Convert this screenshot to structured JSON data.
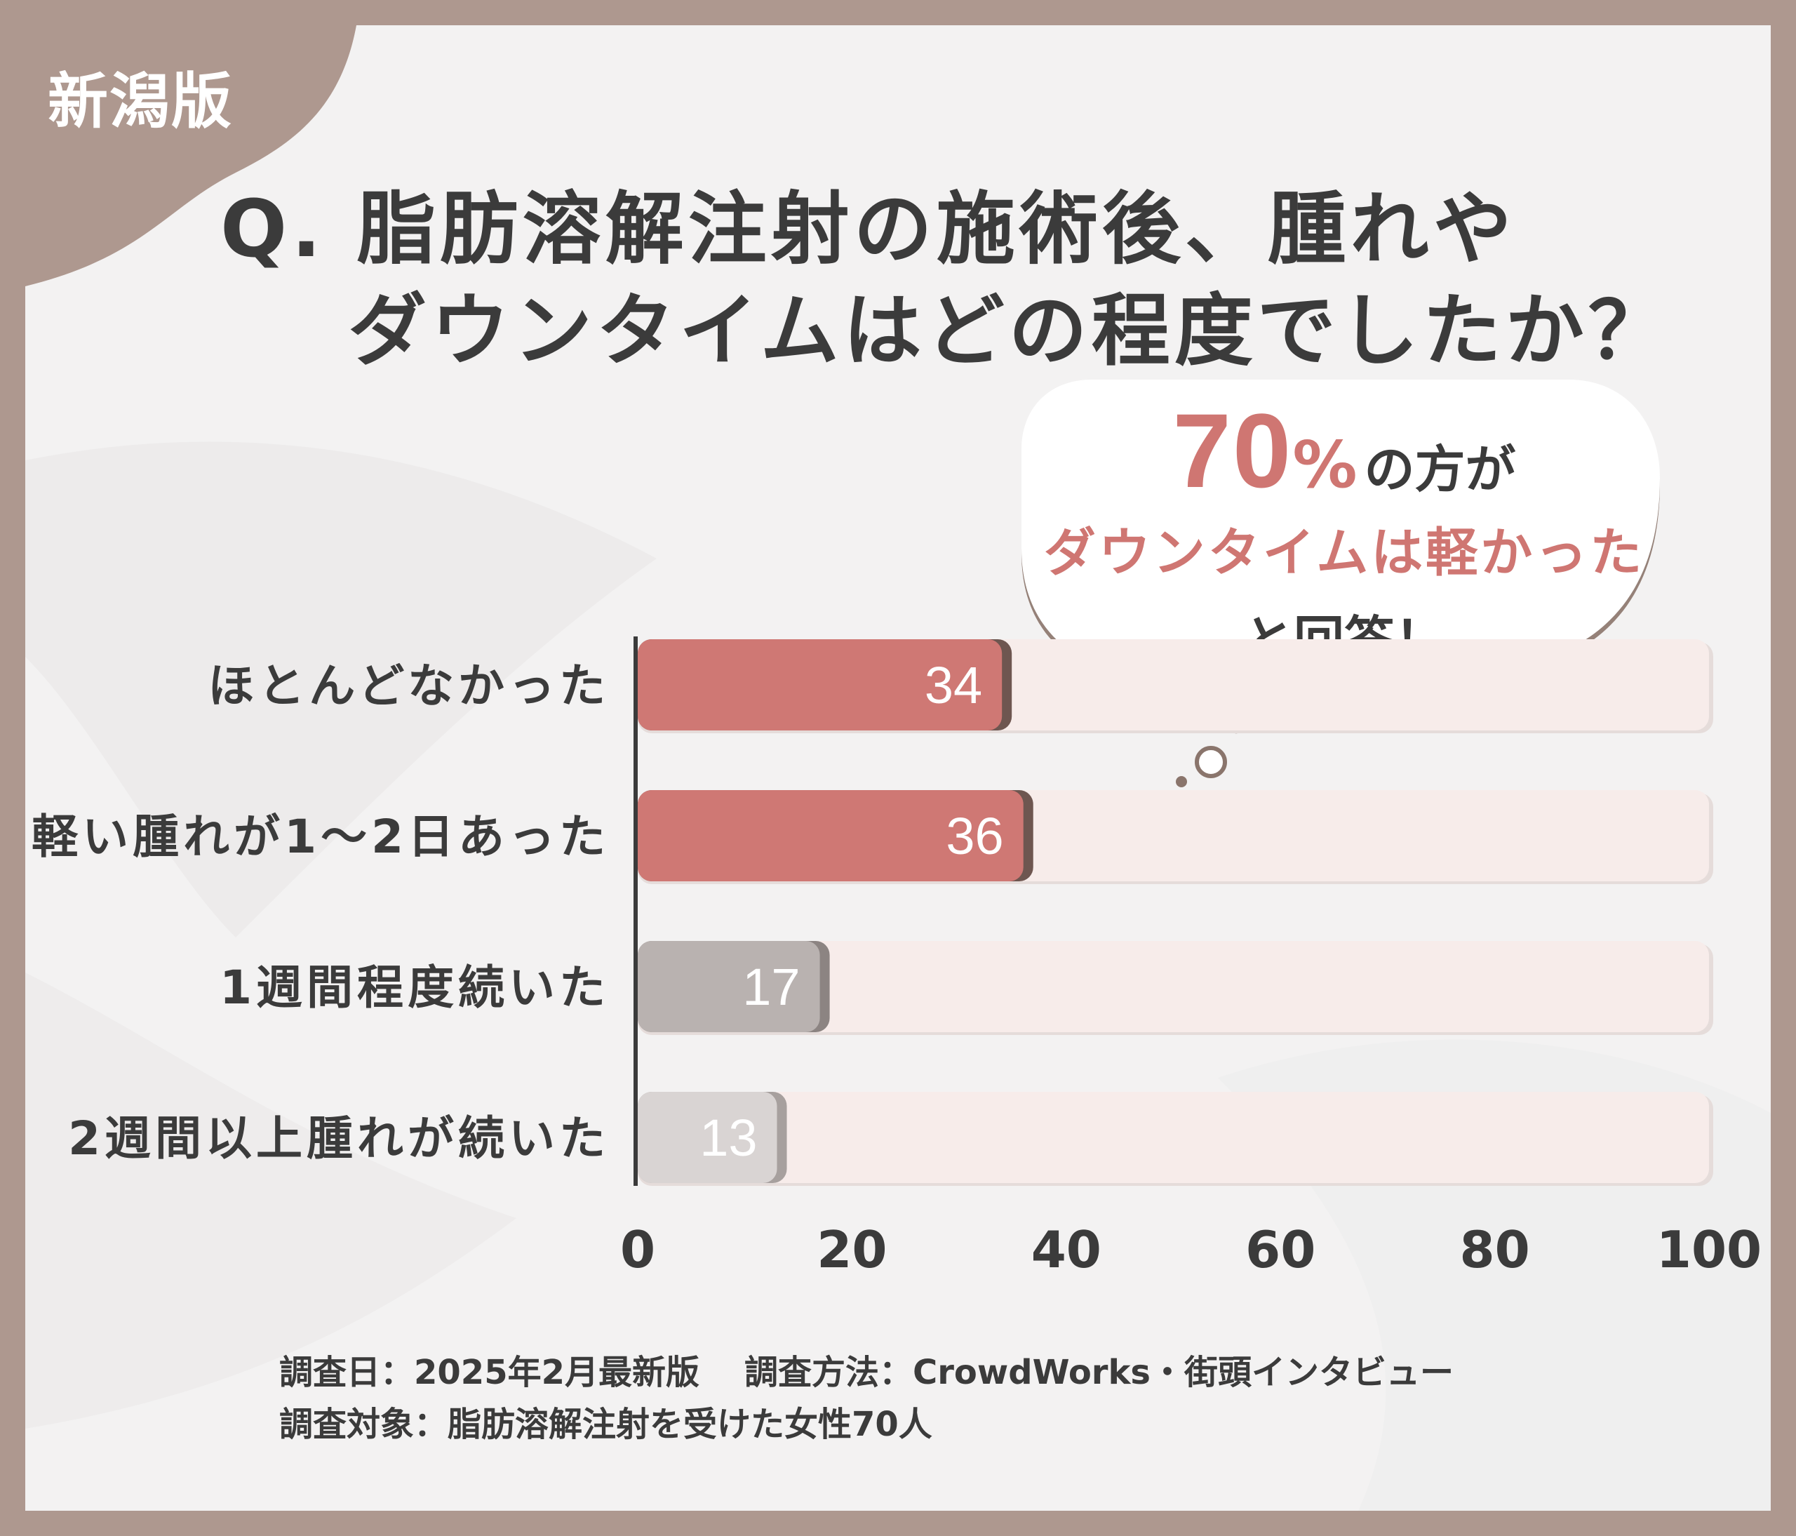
{
  "badge": {
    "text": "新潟版"
  },
  "title": {
    "line1": "Q. 脂肪溶解注射の施術後、腫れや",
    "line2": "ダウンタイムはどの程度でしたか？"
  },
  "callout": {
    "number": "70",
    "percent_sign": "%",
    "after_number": "の方が",
    "highlight": "ダウンタイムは軽かった",
    "ending": "と回答！"
  },
  "chart_data": {
    "type": "bar",
    "orientation": "horizontal",
    "categories": [
      "ほとんどなかった",
      "軽い腫れが1〜2日あった",
      "1週間程度続いた",
      "2週間以上腫れが続いた"
    ],
    "values": [
      34,
      36,
      17,
      13
    ],
    "value_labels": [
      "34",
      "36",
      "17",
      "13"
    ],
    "xlim": [
      0,
      100
    ],
    "xticks": [
      "0",
      "20",
      "40",
      "60",
      "80",
      "100"
    ],
    "bar_colors": [
      "#cf7874",
      "#cf7874",
      "#b9b2b0",
      "#d9d4d3"
    ],
    "track_color": "#f7ecea",
    "grid": false,
    "legend": "none"
  },
  "footnote": {
    "date": "調査日：2025年2月最新版",
    "method": "調査方法：CrowdWorks・街頭インタビュー",
    "target": "調査対象：脂肪溶解注射を受けた女性70人"
  }
}
